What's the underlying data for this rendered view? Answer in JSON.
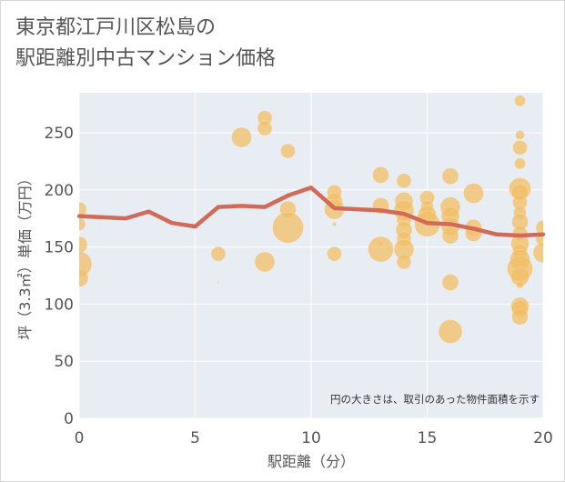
{
  "title_lines": [
    "東京都江戸川区松島の",
    "駅距離別中古マンション価格"
  ],
  "colors": {
    "plot_bg": "#e8edf3",
    "grid": "#ffffff",
    "bubble_fill": "#f3bd64",
    "line": "#d26a5a",
    "axis_text": "#555555"
  },
  "chart_data": {
    "type": "scatter",
    "title": "東京都江戸川区松島の駅距離別中古マンション価格",
    "xlabel": "駅距離（分）",
    "ylabel": "坪（3.3㎡）単価（万円）",
    "xlim": [
      0,
      20
    ],
    "ylim": [
      0,
      285
    ],
    "xticks": [
      0,
      5,
      10,
      15,
      20
    ],
    "yticks": [
      0,
      50,
      100,
      150,
      200,
      250
    ],
    "grid": true,
    "annotation": "円の大きさは、取引のあった物件面積を示す",
    "trend_line": {
      "x": [
        0,
        1,
        2,
        3,
        4,
        5,
        6,
        7,
        8,
        9,
        10,
        11,
        12,
        13,
        14,
        15,
        16,
        17,
        18,
        19,
        20
      ],
      "y": [
        177,
        176,
        175,
        181,
        171,
        168,
        185,
        186,
        185,
        195,
        202,
        184,
        183,
        182,
        179,
        171,
        170,
        166,
        161,
        160,
        161
      ]
    },
    "bubbles": [
      {
        "x": 0,
        "y": 183,
        "size": 8
      },
      {
        "x": 0,
        "y": 170,
        "size": 7
      },
      {
        "x": 0,
        "y": 152,
        "size": 9
      },
      {
        "x": 0,
        "y": 135,
        "size": 14
      },
      {
        "x": 0,
        "y": 123,
        "size": 10
      },
      {
        "x": 6,
        "y": 144,
        "size": 8
      },
      {
        "x": 6,
        "y": 119,
        "size": 1
      },
      {
        "x": 7,
        "y": 246,
        "size": 11
      },
      {
        "x": 8,
        "y": 263,
        "size": 8
      },
      {
        "x": 8,
        "y": 254,
        "size": 8
      },
      {
        "x": 8,
        "y": 137,
        "size": 11
      },
      {
        "x": 9,
        "y": 234,
        "size": 8
      },
      {
        "x": 9,
        "y": 183,
        "size": 9
      },
      {
        "x": 9,
        "y": 167,
        "size": 17
      },
      {
        "x": 11,
        "y": 198,
        "size": 8
      },
      {
        "x": 11,
        "y": 190,
        "size": 9
      },
      {
        "x": 11,
        "y": 183,
        "size": 11
      },
      {
        "x": 11,
        "y": 170,
        "size": 2
      },
      {
        "x": 11,
        "y": 144,
        "size": 8
      },
      {
        "x": 13,
        "y": 213,
        "size": 9
      },
      {
        "x": 13,
        "y": 186,
        "size": 9
      },
      {
        "x": 13,
        "y": 153,
        "size": 2
      },
      {
        "x": 13,
        "y": 148,
        "size": 14
      },
      {
        "x": 14,
        "y": 208,
        "size": 8
      },
      {
        "x": 14,
        "y": 190,
        "size": 10
      },
      {
        "x": 14,
        "y": 182,
        "size": 11
      },
      {
        "x": 14,
        "y": 174,
        "size": 8
      },
      {
        "x": 14,
        "y": 165,
        "size": 9
      },
      {
        "x": 14,
        "y": 157,
        "size": 8
      },
      {
        "x": 14,
        "y": 148,
        "size": 11
      },
      {
        "x": 14,
        "y": 137,
        "size": 8
      },
      {
        "x": 15,
        "y": 193,
        "size": 8
      },
      {
        "x": 15,
        "y": 185,
        "size": 7
      },
      {
        "x": 15,
        "y": 178,
        "size": 10
      },
      {
        "x": 15,
        "y": 170,
        "size": 14
      },
      {
        "x": 16,
        "y": 212,
        "size": 9
      },
      {
        "x": 16,
        "y": 185,
        "size": 11
      },
      {
        "x": 16,
        "y": 177,
        "size": 10
      },
      {
        "x": 16,
        "y": 168,
        "size": 10
      },
      {
        "x": 16,
        "y": 160,
        "size": 9
      },
      {
        "x": 16,
        "y": 119,
        "size": 9
      },
      {
        "x": 16,
        "y": 76,
        "size": 13
      },
      {
        "x": 17,
        "y": 197,
        "size": 11
      },
      {
        "x": 17,
        "y": 167,
        "size": 9
      },
      {
        "x": 17,
        "y": 162,
        "size": 9
      },
      {
        "x": 19,
        "y": 278,
        "size": 6
      },
      {
        "x": 19,
        "y": 248,
        "size": 5
      },
      {
        "x": 19,
        "y": 237,
        "size": 8
      },
      {
        "x": 19,
        "y": 223,
        "size": 6
      },
      {
        "x": 19,
        "y": 201,
        "size": 12
      },
      {
        "x": 19,
        "y": 198,
        "size": 9
      },
      {
        "x": 19,
        "y": 189,
        "size": 8
      },
      {
        "x": 19,
        "y": 180,
        "size": 7
      },
      {
        "x": 19,
        "y": 172,
        "size": 9
      },
      {
        "x": 19,
        "y": 162,
        "size": 8
      },
      {
        "x": 19,
        "y": 153,
        "size": 10
      },
      {
        "x": 19,
        "y": 146,
        "size": 8
      },
      {
        "x": 19,
        "y": 139,
        "size": 11
      },
      {
        "x": 19,
        "y": 131,
        "size": 14
      },
      {
        "x": 19,
        "y": 124,
        "size": 10
      },
      {
        "x": 19,
        "y": 117,
        "size": 4
      },
      {
        "x": 19,
        "y": 98,
        "size": 10
      },
      {
        "x": 19,
        "y": 96,
        "size": 9
      },
      {
        "x": 19,
        "y": 89,
        "size": 9
      },
      {
        "x": 20,
        "y": 167,
        "size": 8
      },
      {
        "x": 20,
        "y": 157,
        "size": 8
      },
      {
        "x": 20,
        "y": 145,
        "size": 11
      }
    ]
  }
}
